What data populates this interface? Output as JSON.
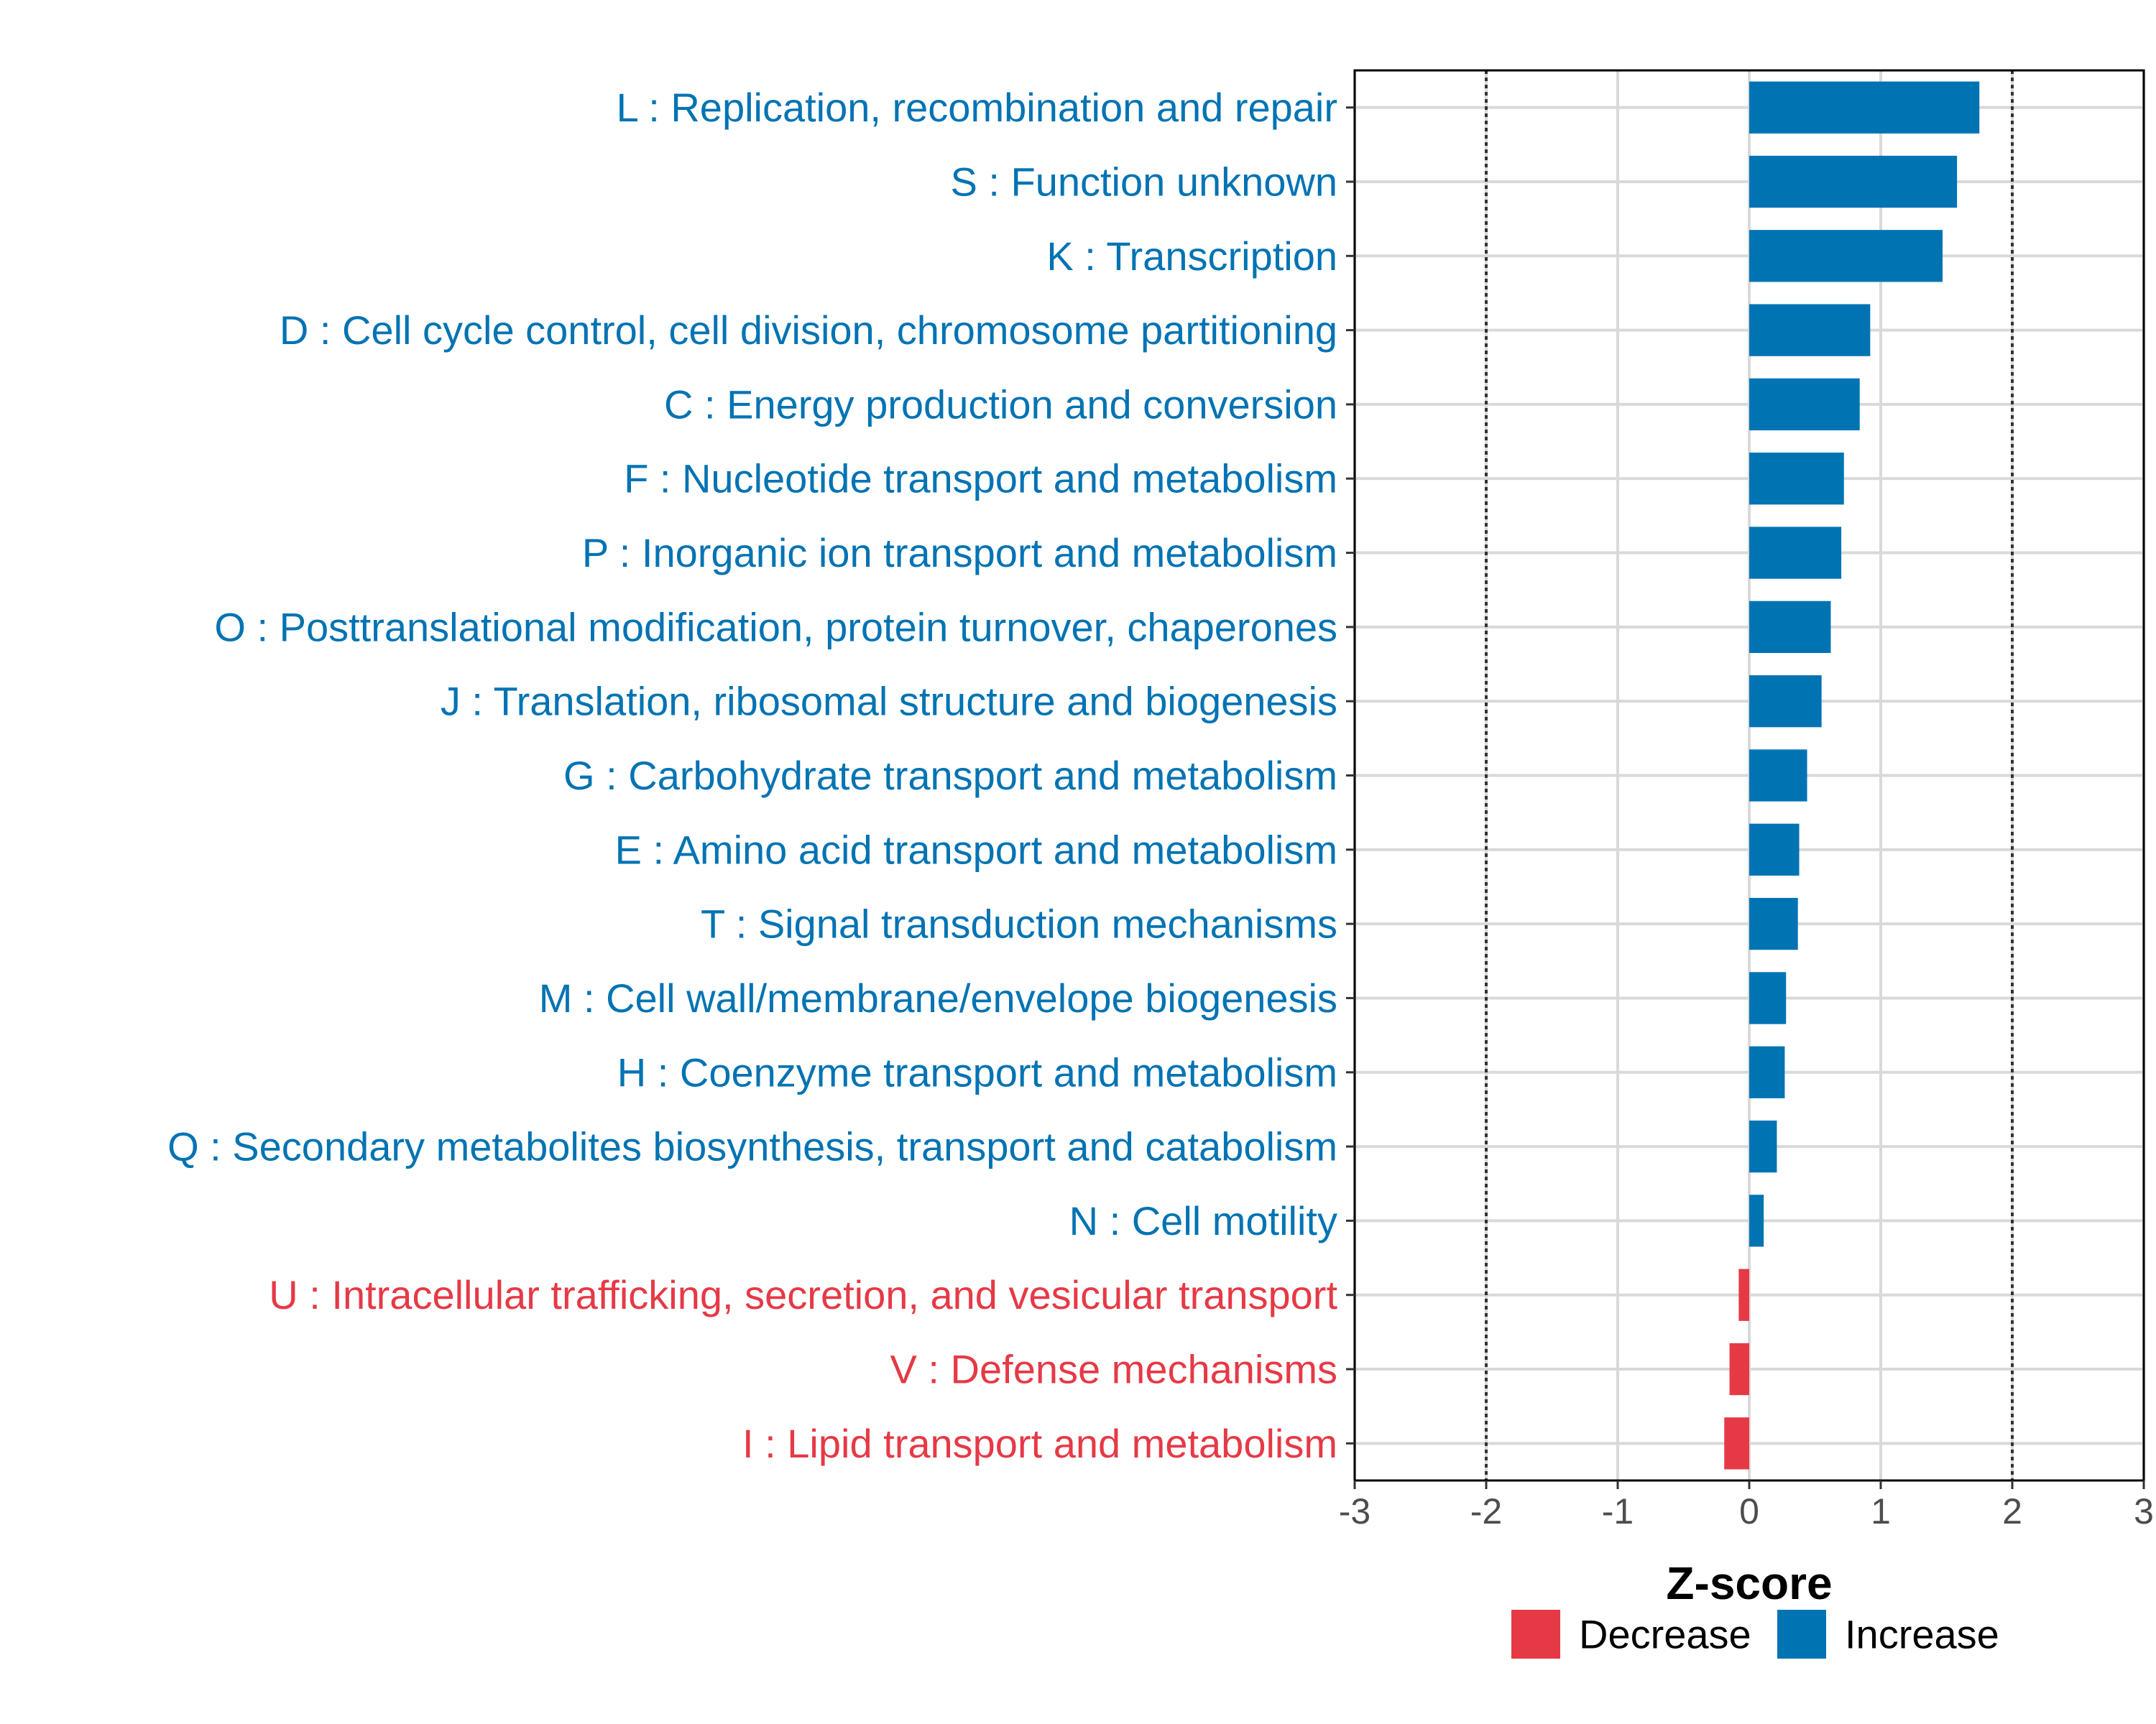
{
  "chart_data": {
    "type": "bar",
    "orientation": "horizontal",
    "xlabel": "Z-score",
    "ylabel": "",
    "xlim": [
      -3,
      3
    ],
    "xticks": [
      "-3",
      "-2",
      "-1",
      "0",
      "1",
      "2",
      "3"
    ],
    "reference_lines": [
      -2,
      2
    ],
    "grid": true,
    "colors": {
      "Decrease": "#e63946",
      "Increase": "#0073b3"
    },
    "categories": [
      "L : Replication, recombination and repair",
      "S : Function unknown",
      "K : Transcription",
      "D : Cell cycle control, cell division, chromosome partitioning",
      "C : Energy production and conversion",
      "F : Nucleotide transport and metabolism",
      "P : Inorganic ion transport and metabolism",
      "O : Posttranslational modification, protein turnover, chaperones",
      "J : Translation, ribosomal structure and biogenesis",
      "G : Carbohydrate transport and metabolism",
      "E : Amino acid transport and metabolism",
      "T : Signal transduction mechanisms",
      "M : Cell wall/membrane/envelope biogenesis",
      "H : Coenzyme transport and metabolism",
      "Q : Secondary metabolites biosynthesis, transport and catabolism",
      "N : Cell motility",
      "U : Intracellular trafficking, secretion, and vesicular transport",
      "V : Defense mechanisms",
      "I : Lipid transport and metabolism"
    ],
    "values": [
      1.75,
      1.58,
      1.47,
      0.92,
      0.84,
      0.72,
      0.7,
      0.62,
      0.55,
      0.44,
      0.38,
      0.37,
      0.28,
      0.27,
      0.21,
      0.11,
      -0.08,
      -0.15,
      -0.19
    ],
    "groups": [
      "Increase",
      "Increase",
      "Increase",
      "Increase",
      "Increase",
      "Increase",
      "Increase",
      "Increase",
      "Increase",
      "Increase",
      "Increase",
      "Increase",
      "Increase",
      "Increase",
      "Increase",
      "Increase",
      "Decrease",
      "Decrease",
      "Decrease"
    ],
    "legend": {
      "position": "bottom",
      "entries": [
        "Decrease",
        "Increase"
      ]
    }
  }
}
